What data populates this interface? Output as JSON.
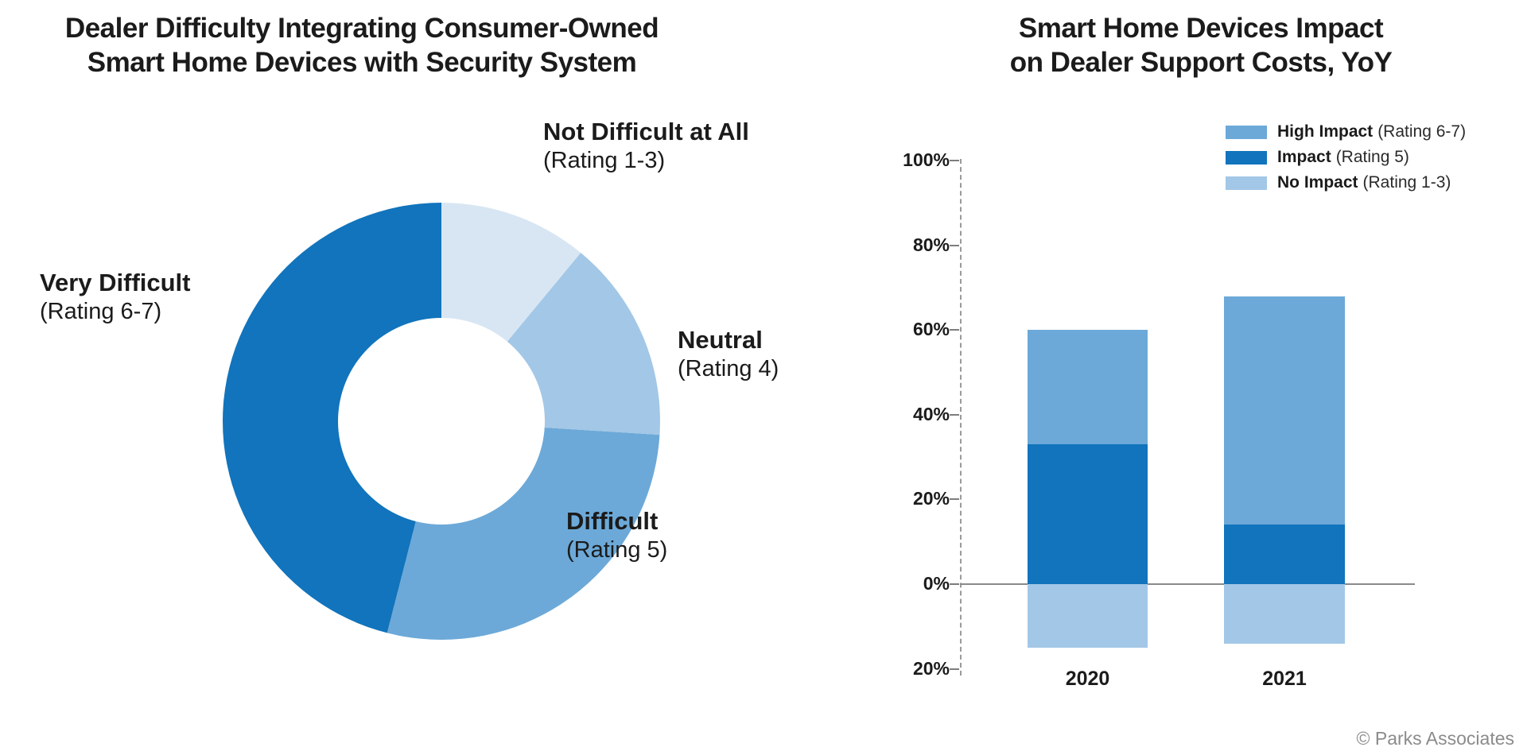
{
  "left_chart": {
    "title_line1": "Dealer Difficulty Integrating Consumer-Owned",
    "title_line2": "Smart Home Devices with Security System"
  },
  "right_chart": {
    "title_line1": "Smart Home Devices Impact",
    "title_line2": "on Dealer Support Costs, YoY"
  },
  "footer": {
    "credit": "© Parks Associates"
  },
  "colors": {
    "dark_blue": "#1174BC",
    "medium_blue": "#6CA9D8",
    "light_blue": "#A3C7E6",
    "lightest_blue": "#D8E6F3",
    "axis_gray": "#8a8a8a"
  },
  "chart_data": [
    {
      "type": "pie",
      "subtype": "donut",
      "title": "Dealer Difficulty Integrating Consumer-Owned Smart Home Devices with Security System",
      "unit": "percent_of_dealers",
      "start_angle_deg": 0,
      "direction": "clockwise",
      "segments": [
        {
          "label": "Not Difficult at All",
          "rating_label": "(Rating 1-3)",
          "value": 11,
          "color": "#D8E6F3"
        },
        {
          "label": "Neutral",
          "rating_label": "(Rating 4)",
          "value": 15,
          "color": "#A3C7E6"
        },
        {
          "label": "Difficult",
          "rating_label": "(Rating 5)",
          "value": 28,
          "color": "#6CA9D8"
        },
        {
          "label": "Very Difficult",
          "rating_label": "(Rating 6-7)",
          "value": 46,
          "color": "#1174BC"
        }
      ]
    },
    {
      "type": "bar",
      "subtype": "stacked",
      "title": "Smart Home Devices Impact on Dealer Support Costs, YoY",
      "categories": [
        "2020",
        "2021"
      ],
      "series": [
        {
          "name": "High Impact",
          "rating_label": "(Rating 6-7)",
          "color": "#6CA9D8",
          "values": [
            27,
            54
          ]
        },
        {
          "name": "Impact",
          "rating_label": "(Rating 5)",
          "color": "#1174BC",
          "values": [
            33,
            14
          ]
        },
        {
          "name": "No Impact",
          "rating_label": "(Rating 1-3)",
          "color": "#A3C7E6",
          "values": [
            -15,
            -14
          ]
        }
      ],
      "positive_stack_totals": [
        60,
        68
      ],
      "ylim": [
        -20,
        100
      ],
      "y_ticks": [
        {
          "label": "100%",
          "value": 100
        },
        {
          "label": "80%",
          "value": 80
        },
        {
          "label": "60%",
          "value": 60
        },
        {
          "label": "40%",
          "value": 40
        },
        {
          "label": "20%",
          "value": 20
        },
        {
          "label": "0%",
          "value": 0
        },
        {
          "label": "20%",
          "value": -20
        }
      ],
      "legend_position": "top-right",
      "grid": false
    }
  ]
}
